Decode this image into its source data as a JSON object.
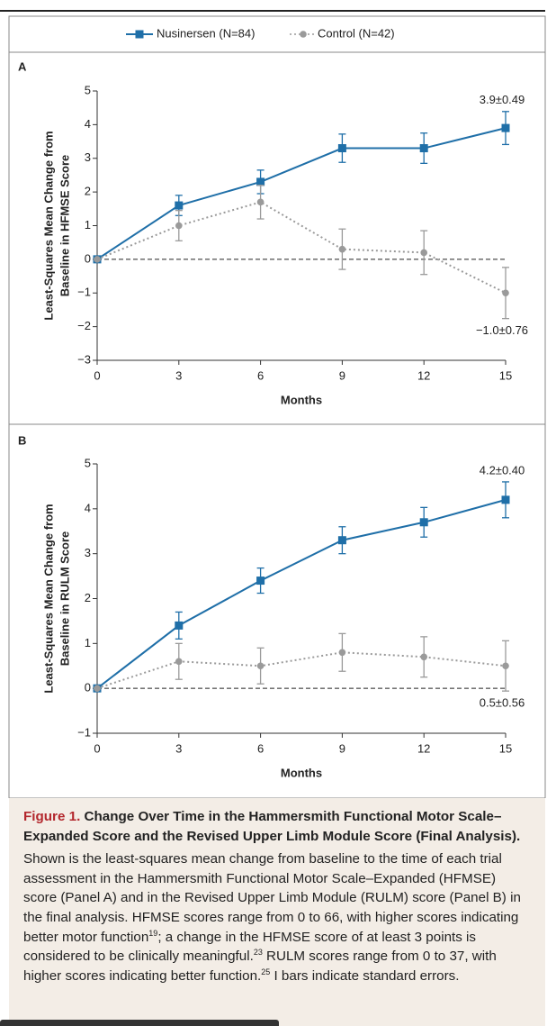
{
  "chart_data": [
    {
      "type": "line",
      "label": "A",
      "y_label": [
        "Least-Squares Mean Change from",
        "Baseline in HFMSE Score"
      ],
      "x_label": "Months",
      "x": [
        0,
        3,
        6,
        9,
        12,
        15
      ],
      "xlim": [
        0,
        15
      ],
      "xticks": [
        0,
        3,
        6,
        9,
        12,
        15
      ],
      "ylim": [
        -3,
        5
      ],
      "yticks": [
        {
          "value": -3,
          "label": "−3"
        },
        {
          "value": -2,
          "label": "−2"
        },
        {
          "value": -1,
          "label": "−1"
        },
        0,
        1,
        2,
        3,
        4,
        5
      ],
      "hline": 0,
      "series": [
        {
          "name": "Nusinersen (N=84)",
          "color": "#1f6fa8",
          "marker": "square",
          "values": [
            0,
            1.6,
            2.3,
            3.3,
            3.3,
            3.9
          ],
          "errors": [
            0,
            0.3,
            0.35,
            0.42,
            0.45,
            0.49
          ],
          "end_label": "3.9±0.49"
        },
        {
          "name": "Control (N=42)",
          "color": "#9a9a9a",
          "marker": "circle",
          "values": [
            0,
            1.0,
            1.7,
            0.3,
            0.2,
            -1.0
          ],
          "errors": [
            0,
            0.45,
            0.5,
            0.6,
            0.65,
            0.76
          ],
          "end_label": "−1.0±0.76"
        }
      ]
    },
    {
      "type": "line",
      "label": "B",
      "y_label": [
        "Least-Squares Mean Change from",
        "Baseline in RULM Score"
      ],
      "x_label": "Months",
      "x": [
        0,
        3,
        6,
        9,
        12,
        15
      ],
      "xlim": [
        0,
        15
      ],
      "xticks": [
        0,
        3,
        6,
        9,
        12,
        15
      ],
      "ylim": [
        -1,
        5
      ],
      "yticks": [
        {
          "value": -1,
          "label": "−1"
        },
        0,
        1,
        2,
        3,
        4,
        5
      ],
      "hline": 0,
      "series": [
        {
          "color": "#1f6fa8",
          "marker": "square",
          "values": [
            0,
            1.4,
            2.4,
            3.3,
            3.7,
            4.2
          ],
          "errors": [
            0,
            0.3,
            0.28,
            0.3,
            0.33,
            0.4
          ],
          "end_label": "4.2±0.40"
        },
        {
          "color": "#9a9a9a",
          "marker": "circle",
          "values": [
            0,
            0.6,
            0.5,
            0.8,
            0.7,
            0.5
          ],
          "errors": [
            0,
            0.4,
            0.4,
            0.42,
            0.45,
            0.56
          ],
          "end_label": "0.5±0.56"
        }
      ]
    }
  ],
  "caption": {
    "label": "Figure 1.",
    "title": "Change Over Time in the Hammersmith Functional Motor Scale–Expanded Score and the Revised Upper Limb Module Score (Final Analysis).",
    "body": [
      "Shown is the least-squares mean change from baseline to the time of each trial assessment in the Hammersmith Functional Motor Scale–Expanded (HFMSE) score (Panel A) and in the Revised Upper Limb Module (RULM) score (Panel B) in the final analysis. HFMSE scores range from 0 to 66, with higher scores indicating better motor function",
      "19",
      "; a change in the HFMSE score of at least 3 points is considered to be clinically meaningful.",
      "23",
      " RULM scores range from 0 to 37, with higher scores indicating better function.",
      "25",
      " I bars indicate standard errors."
    ]
  }
}
